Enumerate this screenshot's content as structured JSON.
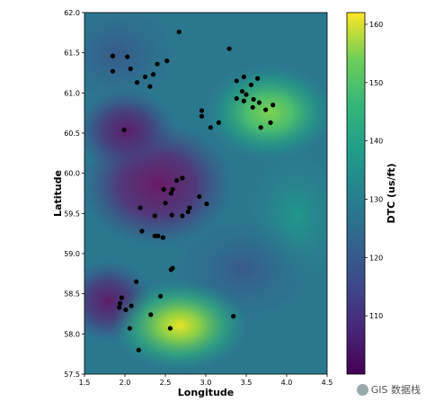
{
  "chart_data": {
    "type": "scatter",
    "xlabel": "Longitude",
    "ylabel": "Latitude",
    "xlim": [
      1.5,
      4.5
    ],
    "ylim": [
      57.5,
      62.0
    ],
    "xticks": [
      "1.5",
      "2.0",
      "2.5",
      "3.0",
      "3.5",
      "4.0",
      "4.5"
    ],
    "yticks": [
      "57.5",
      "58.0",
      "58.5",
      "59.0",
      "59.5",
      "60.0",
      "60.5",
      "61.0",
      "61.5",
      "62.0"
    ],
    "colorbar": {
      "label": "DTC (us/ft)",
      "range": [
        100,
        162
      ],
      "ticks": [
        "110",
        "120",
        "130",
        "140",
        "150",
        "160"
      ],
      "colormap": "viridis"
    },
    "background": "interpolated DTC surface",
    "points": [
      [
        1.85,
        61.46
      ],
      [
        2.03,
        61.45
      ],
      [
        1.85,
        61.27
      ],
      [
        2.07,
        61.3
      ],
      [
        2.15,
        61.13
      ],
      [
        2.25,
        61.2
      ],
      [
        2.35,
        61.23
      ],
      [
        2.31,
        61.08
      ],
      [
        2.4,
        61.36
      ],
      [
        2.52,
        61.4
      ],
      [
        2.67,
        61.76
      ],
      [
        3.29,
        61.55
      ],
      [
        3.38,
        61.15
      ],
      [
        3.47,
        61.2
      ],
      [
        3.56,
        61.1
      ],
      [
        3.64,
        61.18
      ],
      [
        3.45,
        61.02
      ],
      [
        3.5,
        60.98
      ],
      [
        3.38,
        60.93
      ],
      [
        3.47,
        60.9
      ],
      [
        3.59,
        60.92
      ],
      [
        3.66,
        60.88
      ],
      [
        3.58,
        60.82
      ],
      [
        3.74,
        60.79
      ],
      [
        3.83,
        60.85
      ],
      [
        3.8,
        60.63
      ],
      [
        3.68,
        60.57
      ],
      [
        2.95,
        60.78
      ],
      [
        2.95,
        60.71
      ],
      [
        3.16,
        60.63
      ],
      [
        3.06,
        60.57
      ],
      [
        1.99,
        60.54
      ],
      [
        2.71,
        59.94
      ],
      [
        2.64,
        59.91
      ],
      [
        2.59,
        59.8
      ],
      [
        2.57,
        59.75
      ],
      [
        2.48,
        59.8
      ],
      [
        2.92,
        59.71
      ],
      [
        3.01,
        59.62
      ],
      [
        2.5,
        59.63
      ],
      [
        2.19,
        59.57
      ],
      [
        2.8,
        59.57
      ],
      [
        2.78,
        59.52
      ],
      [
        2.58,
        59.48
      ],
      [
        2.71,
        59.47
      ],
      [
        2.37,
        59.47
      ],
      [
        2.21,
        59.28
      ],
      [
        2.37,
        59.22
      ],
      [
        2.41,
        59.22
      ],
      [
        2.47,
        59.2
      ],
      [
        2.59,
        58.82
      ],
      [
        2.57,
        58.8
      ],
      [
        2.14,
        58.65
      ],
      [
        2.44,
        58.47
      ],
      [
        1.96,
        58.45
      ],
      [
        1.94,
        58.38
      ],
      [
        2.08,
        58.35
      ],
      [
        1.93,
        58.33
      ],
      [
        2.01,
        58.3
      ],
      [
        2.32,
        58.24
      ],
      [
        3.34,
        58.22
      ],
      [
        2.06,
        58.07
      ],
      [
        2.56,
        58.07
      ],
      [
        2.17,
        57.8
      ]
    ]
  },
  "watermark": {
    "text": "GIS 数据栈"
  }
}
